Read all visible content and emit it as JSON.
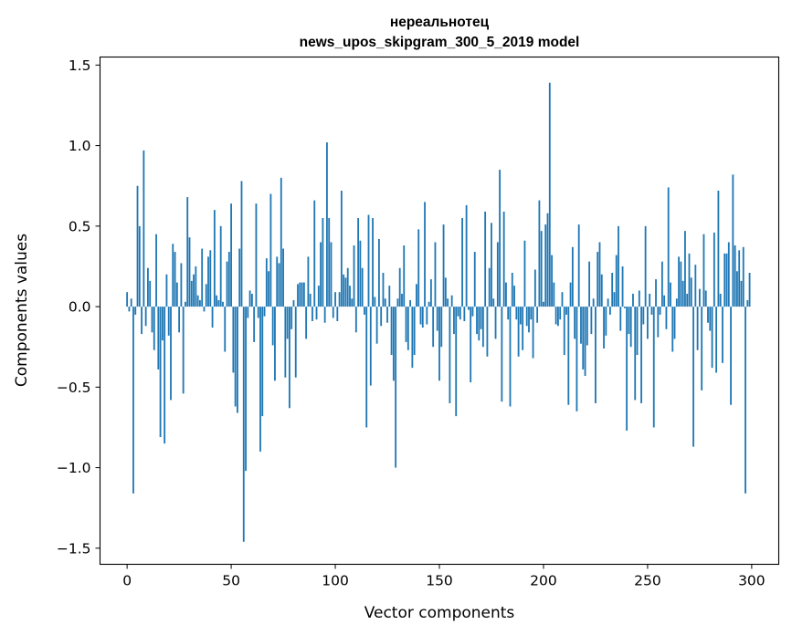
{
  "chart_data": {
    "type": "bar",
    "title": [
      "нереальнотец",
      "news_upos_skipgram_300_5_2019 model"
    ],
    "xlabel": "Vector components",
    "ylabel": "Components values",
    "xlim": [
      -13,
      313
    ],
    "ylim": [
      -1.6,
      1.55
    ],
    "xticks": [
      0,
      50,
      100,
      150,
      200,
      250,
      300
    ],
    "xtick_labels": [
      "0",
      "50",
      "100",
      "150",
      "200",
      "250",
      "300"
    ],
    "yticks": [
      1.5,
      1.0,
      0.5,
      0.0,
      -0.5,
      -1.0,
      -1.5
    ],
    "ytick_labels": [
      "1.5",
      "1.0",
      "0.5",
      "0.0",
      "−0.5",
      "−1.0",
      "−1.5"
    ],
    "grid": false,
    "bar_color": "#1f77b4",
    "x": "0..299",
    "values": [
      0.09,
      -0.03,
      0.05,
      -1.16,
      -0.05,
      0.75,
      0.5,
      -0.17,
      0.97,
      -0.12,
      0.24,
      0.16,
      -0.16,
      -0.27,
      0.45,
      -0.39,
      -0.81,
      -0.21,
      -0.85,
      0.2,
      -0.18,
      -0.58,
      0.39,
      0.34,
      0.15,
      -0.16,
      0.27,
      -0.54,
      0.03,
      0.68,
      0.43,
      0.16,
      0.2,
      0.25,
      0.07,
      0.04,
      0.36,
      -0.03,
      0.14,
      0.31,
      0.35,
      -0.13,
      0.6,
      0.07,
      0.04,
      0.5,
      0.03,
      -0.28,
      0.28,
      0.34,
      0.64,
      -0.41,
      -0.62,
      -0.66,
      0.36,
      0.78,
      -1.46,
      -1.02,
      -0.07,
      0.1,
      0.08,
      -0.22,
      0.64,
      -0.07,
      -0.9,
      -0.68,
      -0.06,
      0.3,
      0.22,
      0.7,
      -0.24,
      -0.46,
      0.31,
      0.27,
      0.8,
      0.36,
      -0.44,
      -0.2,
      -0.63,
      -0.14,
      0.04,
      -0.44,
      0.14,
      0.15,
      0.15,
      0.15,
      -0.2,
      0.31,
      0.08,
      -0.09,
      0.66,
      -0.08,
      0.13,
      0.4,
      0.55,
      -0.1,
      1.02,
      0.55,
      0.4,
      -0.07,
      0.09,
      -0.09,
      0.09,
      0.72,
      0.2,
      0.18,
      0.24,
      0.13,
      0.05,
      0.38,
      -0.16,
      0.55,
      0.41,
      0.24,
      -0.05,
      -0.75,
      0.57,
      -0.49,
      0.55,
      0.06,
      -0.23,
      0.42,
      -0.12,
      0.21,
      0.05,
      -0.1,
      0.13,
      -0.3,
      -0.46,
      -1.0,
      0.05,
      0.24,
      0.08,
      0.38,
      -0.22,
      -0.27,
      0.04,
      -0.38,
      -0.3,
      0.14,
      0.48,
      -0.11,
      -0.13,
      0.65,
      -0.11,
      0.03,
      0.17,
      -0.25,
      0.4,
      -0.15,
      -0.46,
      -0.25,
      0.51,
      0.18,
      0.05,
      -0.6,
      0.07,
      -0.17,
      -0.68,
      -0.06,
      -0.08,
      0.55,
      -0.09,
      0.63,
      -0.02,
      -0.47,
      -0.06,
      0.34,
      -0.17,
      -0.21,
      -0.14,
      -0.25,
      0.59,
      -0.31,
      0.24,
      0.52,
      0.05,
      -0.2,
      0.4,
      0.85,
      -0.59,
      0.59,
      0.15,
      -0.08,
      -0.62,
      0.21,
      0.13,
      -0.08,
      -0.31,
      -0.11,
      -0.27,
      0.41,
      -0.12,
      -0.16,
      -0.08,
      -0.32,
      0.23,
      -0.1,
      0.66,
      0.47,
      0.03,
      0.51,
      0.58,
      1.39,
      0.32,
      0.15,
      -0.11,
      -0.12,
      -0.08,
      0.09,
      -0.3,
      -0.05,
      -0.61,
      0.15,
      0.37,
      -0.2,
      -0.65,
      0.51,
      -0.23,
      -0.39,
      -0.43,
      -0.24,
      0.28,
      -0.17,
      0.05,
      -0.6,
      0.34,
      0.4,
      0.2,
      -0.26,
      -0.18,
      0.05,
      -0.05,
      0.21,
      0.09,
      0.32,
      0.5,
      -0.15,
      0.25,
      -0.01,
      -0.77,
      -0.17,
      -0.25,
      0.08,
      -0.58,
      -0.3,
      0.1,
      -0.6,
      -0.11,
      0.5,
      -0.2,
      0.08,
      -0.05,
      -0.75,
      0.17,
      -0.19,
      -0.05,
      0.28,
      0.07,
      -0.14,
      0.74,
      0.15,
      -0.28,
      -0.2,
      0.05,
      0.31,
      0.28,
      0.16,
      0.47,
      0.08,
      0.33,
      0.18,
      -0.87,
      0.26,
      -0.27,
      0.11,
      -0.52,
      0.45,
      0.1,
      -0.1,
      -0.15,
      -0.38,
      0.46,
      -0.41,
      0.72,
      0.08,
      -0.35,
      0.33,
      0.33,
      0.4,
      -0.61,
      0.82,
      0.38,
      0.22,
      0.35,
      0.16,
      0.37,
      -1.16,
      0.04,
      0.21
    ]
  }
}
